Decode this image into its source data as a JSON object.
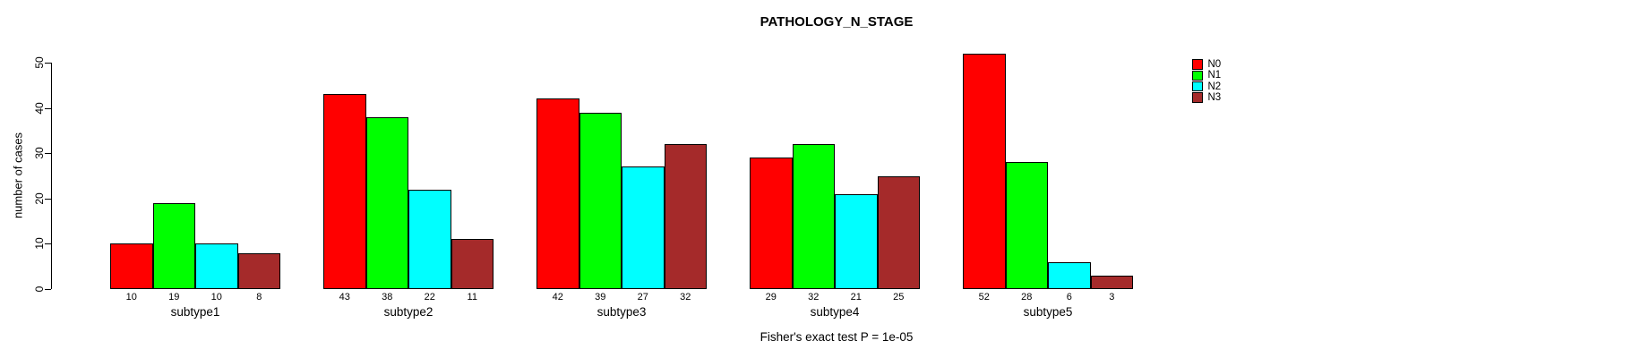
{
  "title": "PATHOLOGY_N_STAGE",
  "caption": "Fisher's exact test P = 1e-05",
  "y_axis": {
    "label": "number of cases",
    "ticks": [
      0,
      10,
      20,
      30,
      40,
      50
    ]
  },
  "legend": {
    "items": [
      {
        "label": "N0",
        "color": "#ff0000"
      },
      {
        "label": "N1",
        "color": "#00ff00"
      },
      {
        "label": "N2",
        "color": "#00ffff"
      },
      {
        "label": "N3",
        "color": "#a52a2a"
      }
    ]
  },
  "chart_data": {
    "type": "bar",
    "title": "PATHOLOGY_N_STAGE",
    "categories": [
      "subtype1",
      "subtype2",
      "subtype3",
      "subtype4",
      "subtype5"
    ],
    "series": [
      {
        "name": "N0",
        "color": "#ff0000",
        "values": [
          10,
          43,
          42,
          29,
          52
        ]
      },
      {
        "name": "N1",
        "color": "#00ff00",
        "values": [
          19,
          38,
          39,
          32,
          28
        ]
      },
      {
        "name": "N2",
        "color": "#00ffff",
        "values": [
          10,
          22,
          27,
          21,
          6
        ]
      },
      {
        "name": "N3",
        "color": "#a52a2a",
        "values": [
          8,
          11,
          32,
          25,
          3
        ]
      }
    ],
    "xlabel": "",
    "ylabel": "number of cases",
    "ylim": [
      0,
      50
    ],
    "grid": false,
    "grouped": true,
    "bar_value_labels_shown": true,
    "legend_position": "top-right",
    "annotation": "Fisher's exact test P = 1e-05"
  }
}
